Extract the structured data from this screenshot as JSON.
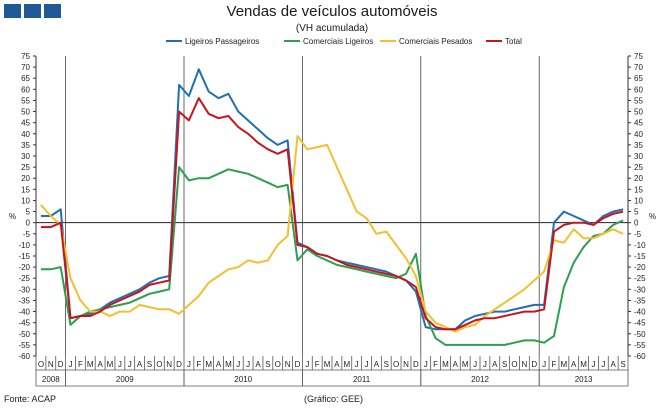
{
  "header": {
    "title": "Vendas de veículos automóveis",
    "subtitle": "(VH acumulada)"
  },
  "footer": {
    "source": "Fonte: ACAP",
    "credit": "(Gráfico: GEE)"
  },
  "colors": {
    "logo": "#1f5a96",
    "Ligeiros Passageiros": "#1f6fb2",
    "Comerciais Ligeiros": "#2e9e4f",
    "Comerciais Pesados": "#f0c030",
    "Total": "#c8141e"
  },
  "chart_data": {
    "type": "line",
    "title": "Vendas de veículos automóveis",
    "subtitle": "(VH acumulada)",
    "ylabel": "%",
    "ylabel_right": "%",
    "ylim": [
      -60,
      75
    ],
    "ytick_step": 5,
    "legend_position": "top",
    "x_months": [
      "O",
      "N",
      "D",
      "J",
      "F",
      "M",
      "A",
      "M",
      "J",
      "J",
      "A",
      "S",
      "O",
      "N",
      "D",
      "J",
      "F",
      "M",
      "A",
      "M",
      "J",
      "J",
      "A",
      "S",
      "O",
      "N",
      "D",
      "J",
      "F",
      "M",
      "A",
      "M",
      "J",
      "J",
      "A",
      "S",
      "O",
      "N",
      "D",
      "J",
      "F",
      "M",
      "A",
      "M",
      "J",
      "J",
      "A",
      "S",
      "O",
      "N",
      "D",
      "J",
      "F",
      "M",
      "A",
      "M",
      "J",
      "J",
      "A",
      "S"
    ],
    "year_groups": [
      {
        "label": "2008",
        "start": 0,
        "count": 3
      },
      {
        "label": "2009",
        "start": 3,
        "count": 12
      },
      {
        "label": "2010",
        "start": 15,
        "count": 12
      },
      {
        "label": "2011",
        "start": 27,
        "count": 12
      },
      {
        "label": "2012",
        "start": 39,
        "count": 12
      },
      {
        "label": "2013",
        "start": 51,
        "count": 9
      }
    ],
    "series": [
      {
        "name": "Ligeiros Passageiros",
        "values": [
          3,
          3,
          6,
          -43,
          -42,
          -41,
          -39,
          -36,
          -34,
          -32,
          -30,
          -27,
          -25,
          -24,
          62,
          57,
          69,
          59,
          56,
          58,
          50,
          46,
          42,
          38,
          35,
          37,
          -9,
          -11,
          -14,
          -15,
          -17,
          -18,
          -19,
          -20,
          -21,
          -22,
          -24,
          -26,
          -31,
          -47,
          -48,
          -48,
          -48,
          -44,
          -42,
          -41,
          -40,
          -40,
          -39,
          -38,
          -37,
          -37,
          0,
          5,
          3,
          1,
          -1,
          3,
          5,
          6
        ]
      },
      {
        "name": "Comerciais Ligeiros",
        "values": [
          -21,
          -21,
          -20,
          -46,
          -42,
          -40,
          -39,
          -38,
          -37,
          -36,
          -34,
          -32,
          -31,
          -30,
          25,
          19,
          20,
          20,
          22,
          24,
          23,
          22,
          20,
          18,
          16,
          17,
          -17,
          -12,
          -15,
          -17,
          -19,
          -20,
          -21,
          -22,
          -23,
          -24,
          -25,
          -23,
          -14,
          -42,
          -52,
          -55,
          -55,
          -55,
          -55,
          -55,
          -55,
          -55,
          -54,
          -53,
          -53,
          -54,
          -51,
          -29,
          -18,
          -11,
          -6,
          -5,
          -1,
          1
        ]
      },
      {
        "name": "Comerciais Pesados",
        "values": [
          8,
          3,
          -1,
          -25,
          -35,
          -40,
          -40,
          -42,
          -40,
          -40,
          -37,
          -38,
          -39,
          -39,
          -41,
          -37,
          -33,
          -27,
          -24,
          -21,
          -20,
          -17,
          -18,
          -17,
          -10,
          -6,
          39,
          33,
          34,
          35,
          25,
          15,
          5,
          2,
          -5,
          -4,
          -10,
          -16,
          -24,
          -40,
          -45,
          -47,
          -49,
          -47,
          -46,
          -42,
          -39,
          -36,
          -33,
          -30,
          -26,
          -22,
          -8,
          -9,
          -3,
          -7,
          -7,
          -5,
          -3,
          -5
        ]
      },
      {
        "name": "Total",
        "values": [
          -2,
          -2,
          0,
          -43,
          -42,
          -42,
          -40,
          -37,
          -35,
          -33,
          -31,
          -28,
          -27,
          -26,
          50,
          46,
          56,
          49,
          47,
          48,
          43,
          40,
          36,
          33,
          31,
          33,
          -10,
          -11,
          -14,
          -15,
          -17,
          -19,
          -20,
          -21,
          -22,
          -23,
          -24,
          -26,
          -29,
          -43,
          -47,
          -48,
          -48,
          -46,
          -44,
          -43,
          -43,
          -42,
          -41,
          -40,
          -40,
          -39,
          -4,
          -1,
          0,
          0,
          -1,
          2,
          4,
          5
        ]
      }
    ]
  }
}
